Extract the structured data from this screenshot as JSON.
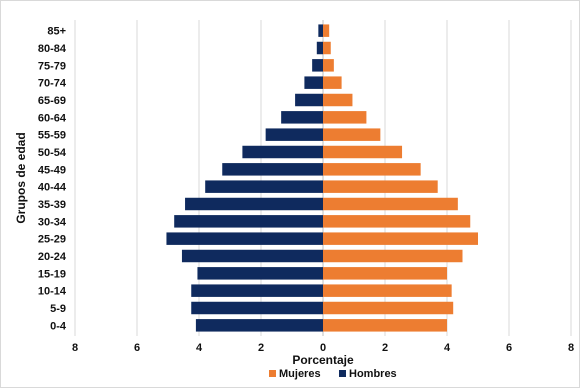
{
  "chart_data": {
    "type": "bar",
    "orientation": "horizontal",
    "subtype": "population-pyramid",
    "categories": [
      "0-4",
      "5-9",
      "10-14",
      "15-19",
      "20-24",
      "25-29",
      "30-34",
      "35-39",
      "40-44",
      "45-49",
      "50-54",
      "55-59",
      "60-64",
      "65-69",
      "70-74",
      "75-79",
      "80-84",
      "85+"
    ],
    "series": [
      {
        "name": "Mujeres",
        "color": "#ed7d31",
        "side": "right",
        "values": [
          4.0,
          4.2,
          4.15,
          4.0,
          4.5,
          5.0,
          4.75,
          4.35,
          3.7,
          3.15,
          2.55,
          1.85,
          1.4,
          0.95,
          0.6,
          0.35,
          0.25,
          0.2
        ]
      },
      {
        "name": "Hombres",
        "color": "#0f2a5e",
        "side": "left",
        "values": [
          4.1,
          4.25,
          4.25,
          4.05,
          4.55,
          5.05,
          4.8,
          4.45,
          3.8,
          3.25,
          2.6,
          1.85,
          1.35,
          0.9,
          0.6,
          0.35,
          0.2,
          0.15
        ]
      }
    ],
    "xlabel": "Porcentaje",
    "ylabel": "Grupos de edad",
    "xlim": [
      -8,
      8
    ],
    "xticks": [
      -8,
      -6,
      -4,
      -2,
      0,
      2,
      4,
      6,
      8
    ],
    "xtick_labels": [
      "8",
      "6",
      "4",
      "2",
      "0",
      "2",
      "4",
      "6",
      "8"
    ],
    "grid": "vertical",
    "legend": "bottom-center"
  }
}
